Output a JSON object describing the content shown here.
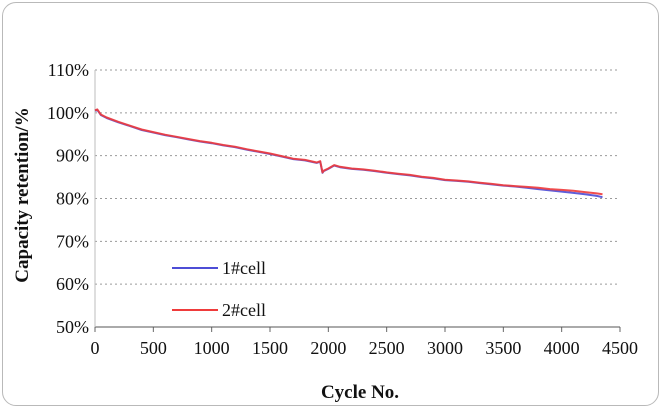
{
  "chart_data": {
    "type": "line",
    "title": "",
    "xlabel": "Cycle No.",
    "ylabel": "Capacity retention/%",
    "xlim": [
      0,
      4500
    ],
    "ylim": [
      50,
      110
    ],
    "x_ticks": [
      "0",
      "500",
      "1000",
      "1500",
      "2000",
      "2500",
      "3000",
      "3500",
      "4000",
      "4500"
    ],
    "y_ticks": [
      "50%",
      "60%",
      "70%",
      "80%",
      "90%",
      "100%",
      "110%"
    ],
    "grid": "horizontal-dotted",
    "legend_position": "bottom-left",
    "series": [
      {
        "name": "1#cell",
        "color": "#4d4dd6",
        "x": [
          0,
          20,
          50,
          100,
          200,
          300,
          400,
          500,
          600,
          700,
          800,
          900,
          1000,
          1100,
          1200,
          1300,
          1400,
          1500,
          1600,
          1700,
          1800,
          1900,
          1930,
          1950,
          1960,
          2000,
          2050,
          2100,
          2200,
          2300,
          2400,
          2500,
          2600,
          2700,
          2800,
          2900,
          3000,
          3100,
          3200,
          3300,
          3400,
          3500,
          3600,
          3700,
          3800,
          3900,
          4000,
          4100,
          4200,
          4300,
          4350
        ],
        "values": [
          100.5,
          100.7,
          99.5,
          98.8,
          97.8,
          96.9,
          96.0,
          95.4,
          94.8,
          94.3,
          93.8,
          93.3,
          92.9,
          92.4,
          92.0,
          91.4,
          90.9,
          90.4,
          89.8,
          89.2,
          88.9,
          88.3,
          88.6,
          86.0,
          86.4,
          86.9,
          87.7,
          87.3,
          86.9,
          86.7,
          86.4,
          86.0,
          85.7,
          85.4,
          85.0,
          84.7,
          84.3,
          84.1,
          83.9,
          83.6,
          83.3,
          83.0,
          82.8,
          82.5,
          82.2,
          81.9,
          81.6,
          81.3,
          81.0,
          80.6,
          80.3
        ]
      },
      {
        "name": "2#cell",
        "color": "#ef3b3b",
        "x": [
          0,
          20,
          50,
          100,
          200,
          300,
          400,
          500,
          600,
          700,
          800,
          900,
          1000,
          1100,
          1200,
          1300,
          1400,
          1500,
          1600,
          1700,
          1800,
          1900,
          1930,
          1950,
          1960,
          2000,
          2050,
          2100,
          2200,
          2300,
          2400,
          2500,
          2600,
          2700,
          2800,
          2900,
          3000,
          3100,
          3200,
          3300,
          3400,
          3500,
          3600,
          3700,
          3800,
          3900,
          4000,
          4100,
          4200,
          4300,
          4350
        ],
        "values": [
          100.6,
          100.8,
          99.6,
          98.9,
          97.9,
          97.0,
          96.1,
          95.5,
          94.9,
          94.4,
          93.9,
          93.4,
          93.0,
          92.5,
          92.1,
          91.5,
          91.0,
          90.5,
          89.9,
          89.3,
          89.0,
          88.4,
          88.7,
          86.1,
          86.5,
          87.0,
          87.8,
          87.4,
          87.0,
          86.8,
          86.5,
          86.1,
          85.8,
          85.5,
          85.1,
          84.8,
          84.4,
          84.2,
          84.0,
          83.7,
          83.4,
          83.1,
          82.9,
          82.7,
          82.5,
          82.2,
          82.0,
          81.8,
          81.5,
          81.2,
          81.0
        ]
      }
    ]
  }
}
